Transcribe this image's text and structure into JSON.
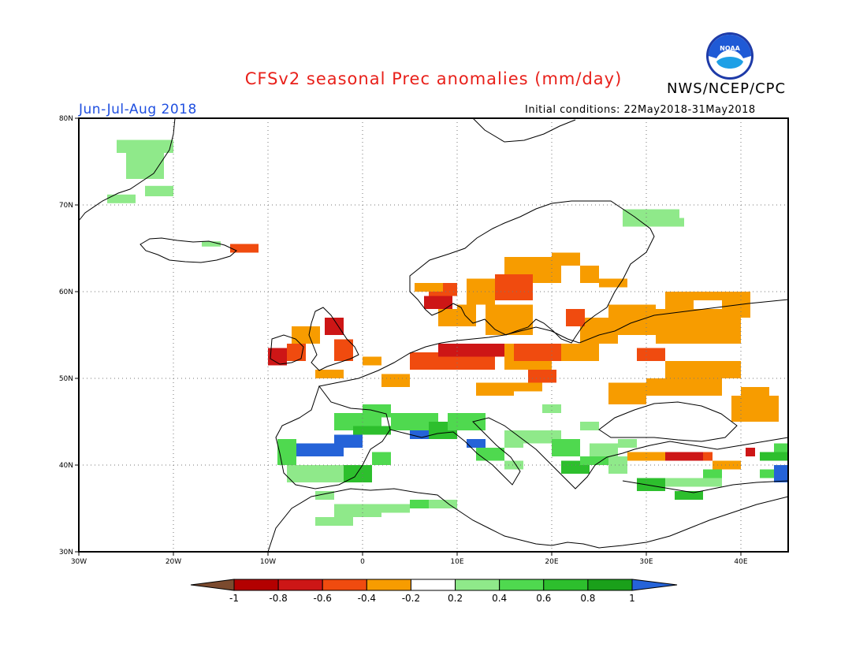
{
  "header": {
    "title": "CFSv2 seasonal Prec anomalies (mm/day)",
    "agency": "NWS/NCEP/CPC",
    "season": "Jun-Jul-Aug 2018",
    "initial_conditions": "Initial conditions: 22May2018-31May2018",
    "logo_text": "NOAA"
  },
  "map": {
    "lon_range": [
      -30,
      45
    ],
    "lat_range": [
      30,
      80
    ],
    "lon_ticks": [
      {
        "value": -30,
        "label": "30W"
      },
      {
        "value": -20,
        "label": "20W"
      },
      {
        "value": -10,
        "label": "10W"
      },
      {
        "value": 0,
        "label": "0"
      },
      {
        "value": 10,
        "label": "10E"
      },
      {
        "value": 20,
        "label": "20E"
      },
      {
        "value": 30,
        "label": "30E"
      },
      {
        "value": 40,
        "label": "40E"
      }
    ],
    "lat_ticks": [
      {
        "value": 30,
        "label": "30N"
      },
      {
        "value": 40,
        "label": "40N"
      },
      {
        "value": 50,
        "label": "50N"
      },
      {
        "value": 60,
        "label": "60N"
      },
      {
        "value": 70,
        "label": "70N"
      },
      {
        "value": 80,
        "label": "80N"
      }
    ],
    "anomaly_cells": [
      {
        "lon": -26,
        "lat": 76,
        "w": 6,
        "h": 1.5,
        "level": 0.3
      },
      {
        "lon": -25,
        "lat": 73,
        "w": 4,
        "h": 3,
        "level": 0.3
      },
      {
        "lon": -27,
        "lat": 70.2,
        "w": 3,
        "h": 1,
        "level": 0.3
      },
      {
        "lon": -23,
        "lat": 71,
        "w": 3,
        "h": 1.2,
        "level": 0.3
      },
      {
        "lon": -14,
        "lat": 64.5,
        "w": 3,
        "h": 1,
        "level": -0.5
      },
      {
        "lon": -17,
        "lat": 65.2,
        "w": 2,
        "h": 0.6,
        "level": 0.3
      },
      {
        "lon": -10,
        "lat": 51.5,
        "w": 2,
        "h": 2,
        "level": -0.7
      },
      {
        "lon": -8,
        "lat": 52,
        "w": 2,
        "h": 2,
        "level": -0.5
      },
      {
        "lon": -7.5,
        "lat": 54,
        "w": 3,
        "h": 2,
        "level": -0.3
      },
      {
        "lon": -4,
        "lat": 55,
        "w": 2,
        "h": 2,
        "level": -0.7
      },
      {
        "lon": -3,
        "lat": 52,
        "w": 2,
        "h": 2.5,
        "level": -0.5
      },
      {
        "lon": -5,
        "lat": 50,
        "w": 3,
        "h": 1,
        "level": -0.3
      },
      {
        "lon": 0,
        "lat": 51.5,
        "w": 2,
        "h": 1,
        "level": -0.3
      },
      {
        "lon": 2,
        "lat": 49,
        "w": 3,
        "h": 1.5,
        "level": -0.3
      },
      {
        "lon": 5,
        "lat": 51,
        "w": 4,
        "h": 2,
        "level": -0.5
      },
      {
        "lon": 9,
        "lat": 51,
        "w": 5,
        "h": 2,
        "level": -0.5
      },
      {
        "lon": 8,
        "lat": 52.5,
        "w": 7,
        "h": 1.5,
        "level": -0.7
      },
      {
        "lon": 15,
        "lat": 51,
        "w": 5,
        "h": 3,
        "level": -0.3
      },
      {
        "lon": 16,
        "lat": 52,
        "w": 5,
        "h": 2,
        "level": -0.5
      },
      {
        "lon": 17.5,
        "lat": 49.5,
        "w": 3,
        "h": 1.5,
        "level": -0.5
      },
      {
        "lon": 21,
        "lat": 52,
        "w": 4,
        "h": 2,
        "level": -0.3
      },
      {
        "lon": 23,
        "lat": 54,
        "w": 4,
        "h": 3,
        "level": -0.3
      },
      {
        "lon": 21.5,
        "lat": 56,
        "w": 2,
        "h": 2,
        "level": -0.5
      },
      {
        "lon": 8,
        "lat": 56,
        "w": 4,
        "h": 2,
        "level": -0.3
      },
      {
        "lon": 6.5,
        "lat": 58,
        "w": 3,
        "h": 1.5,
        "level": -0.7
      },
      {
        "lon": 7,
        "lat": 59.5,
        "w": 3,
        "h": 1.5,
        "level": -0.5
      },
      {
        "lon": 5.5,
        "lat": 60,
        "w": 3,
        "h": 1,
        "level": -0.3
      },
      {
        "lon": 10,
        "lat": 56,
        "w": 2,
        "h": 2.5,
        "level": -0.3
      },
      {
        "lon": 11,
        "lat": 58.5,
        "w": 3,
        "h": 3,
        "level": -0.3
      },
      {
        "lon": 13,
        "lat": 55,
        "w": 5,
        "h": 3.5,
        "level": -0.3
      },
      {
        "lon": 14,
        "lat": 59,
        "w": 4,
        "h": 3,
        "level": -0.5
      },
      {
        "lon": 15,
        "lat": 62,
        "w": 4,
        "h": 2,
        "level": -0.3
      },
      {
        "lon": 18,
        "lat": 61,
        "w": 3,
        "h": 3,
        "level": -0.3
      },
      {
        "lon": 20,
        "lat": 63,
        "w": 3,
        "h": 1.5,
        "level": -0.3
      },
      {
        "lon": 23,
        "lat": 61,
        "w": 2,
        "h": 2,
        "level": -0.3
      },
      {
        "lon": 25,
        "lat": 60.5,
        "w": 3,
        "h": 1,
        "level": -0.3
      },
      {
        "lon": 26,
        "lat": 55,
        "w": 5,
        "h": 3.5,
        "level": -0.3
      },
      {
        "lon": 31,
        "lat": 54,
        "w": 9,
        "h": 4,
        "level": -0.3
      },
      {
        "lon": 32,
        "lat": 50,
        "w": 8,
        "h": 2,
        "level": -0.3
      },
      {
        "lon": 29,
        "lat": 52,
        "w": 3,
        "h": 1.5,
        "level": -0.5
      },
      {
        "lon": 32,
        "lat": 57,
        "w": 9,
        "h": 3,
        "level": -0.3
      },
      {
        "lon": 35,
        "lat": 58,
        "w": 3,
        "h": 1,
        "level": 0
      },
      {
        "lon": 26,
        "lat": 47,
        "w": 4,
        "h": 2.5,
        "level": -0.3
      },
      {
        "lon": 30,
        "lat": 48,
        "w": 8,
        "h": 2,
        "level": -0.3
      },
      {
        "lon": 39,
        "lat": 45,
        "w": 5,
        "h": 3,
        "level": -0.3
      },
      {
        "lon": 40,
        "lat": 47.5,
        "w": 3,
        "h": 1.5,
        "level": -0.3
      },
      {
        "lon": 16,
        "lat": 48.5,
        "w": 3,
        "h": 1,
        "level": -0.3
      },
      {
        "lon": 12,
        "lat": 48,
        "w": 4,
        "h": 1.5,
        "level": -0.3
      },
      {
        "lon": 28,
        "lat": 40.5,
        "w": 4,
        "h": 1,
        "level": -0.3
      },
      {
        "lon": 32,
        "lat": 40.5,
        "w": 4,
        "h": 1,
        "level": -0.7
      },
      {
        "lon": 36,
        "lat": 40.5,
        "w": 1,
        "h": 1,
        "level": -0.5
      },
      {
        "lon": 37,
        "lat": 39.5,
        "w": 3,
        "h": 1,
        "level": -0.3
      },
      {
        "lon": 26,
        "lat": 63,
        "w": 3,
        "h": 1,
        "level": 0
      },
      {
        "lon": 27.5,
        "lat": 67.5,
        "w": 6,
        "h": 2,
        "level": 0.3
      },
      {
        "lon": 31,
        "lat": 67.5,
        "w": 3,
        "h": 1,
        "level": 0.3
      },
      {
        "lon": -3,
        "lat": 44,
        "w": 5,
        "h": 2,
        "level": 0.5
      },
      {
        "lon": 0,
        "lat": 45.5,
        "w": 3,
        "h": 1.5,
        "level": 0.5
      },
      {
        "lon": -1,
        "lat": 43.5,
        "w": 4,
        "h": 1,
        "level": 0.7
      },
      {
        "lon": 3,
        "lat": 44,
        "w": 5,
        "h": 2,
        "level": 0.5
      },
      {
        "lon": 5,
        "lat": 43,
        "w": 2,
        "h": 1,
        "level": 1.1
      },
      {
        "lon": 7,
        "lat": 43,
        "w": 3,
        "h": 2,
        "level": 0.7
      },
      {
        "lon": 9,
        "lat": 44,
        "w": 4,
        "h": 2,
        "level": 0.5
      },
      {
        "lon": 11,
        "lat": 42,
        "w": 2,
        "h": 1,
        "level": 1.1
      },
      {
        "lon": 12,
        "lat": 40.5,
        "w": 3,
        "h": 1.5,
        "level": 0.5
      },
      {
        "lon": 15,
        "lat": 39.5,
        "w": 2,
        "h": 1,
        "level": 0.3
      },
      {
        "lon": 15,
        "lat": 42,
        "w": 2,
        "h": 2,
        "level": 0.3
      },
      {
        "lon": 17,
        "lat": 42.5,
        "w": 4,
        "h": 1.5,
        "level": 0.3
      },
      {
        "lon": 20,
        "lat": 41,
        "w": 3,
        "h": 2,
        "level": 0.5
      },
      {
        "lon": 21,
        "lat": 39,
        "w": 3,
        "h": 1.5,
        "level": 0.7
      },
      {
        "lon": 23,
        "lat": 40,
        "w": 3,
        "h": 1,
        "level": 0.5
      },
      {
        "lon": 24,
        "lat": 41,
        "w": 3,
        "h": 1.5,
        "level": 0.3
      },
      {
        "lon": 26,
        "lat": 39,
        "w": 2,
        "h": 2,
        "level": 0.3
      },
      {
        "lon": 27,
        "lat": 42,
        "w": 2,
        "h": 1,
        "level": 0.3
      },
      {
        "lon": 23,
        "lat": 44,
        "w": 2,
        "h": 1,
        "level": 0.3
      },
      {
        "lon": 19,
        "lat": 46,
        "w": 2,
        "h": 1,
        "level": 0.3
      },
      {
        "lon": -9,
        "lat": 40,
        "w": 2,
        "h": 3,
        "level": 0.5
      },
      {
        "lon": -8,
        "lat": 38,
        "w": 2,
        "h": 2,
        "level": 0.3
      },
      {
        "lon": -7,
        "lat": 41,
        "w": 5,
        "h": 1.5,
        "level": 1.1
      },
      {
        "lon": -3,
        "lat": 42,
        "w": 3,
        "h": 1.5,
        "level": 1.1
      },
      {
        "lon": -6,
        "lat": 38,
        "w": 4,
        "h": 2,
        "level": 0.3
      },
      {
        "lon": -2,
        "lat": 38,
        "w": 3,
        "h": 2,
        "level": 0.7
      },
      {
        "lon": 1,
        "lat": 40,
        "w": 2,
        "h": 1.5,
        "level": 0.5
      },
      {
        "lon": -5,
        "lat": 36,
        "w": 2,
        "h": 1,
        "level": 0.3
      },
      {
        "lon": -3,
        "lat": 34,
        "w": 5,
        "h": 1.5,
        "level": 0.3
      },
      {
        "lon": 2,
        "lat": 34.5,
        "w": 3,
        "h": 1,
        "level": 0.3
      },
      {
        "lon": 5,
        "lat": 35,
        "w": 2,
        "h": 1,
        "level": 0.5
      },
      {
        "lon": 7,
        "lat": 35,
        "w": 3,
        "h": 1,
        "level": 0.3
      },
      {
        "lon": -5,
        "lat": 33,
        "w": 4,
        "h": 1,
        "level": 0.3
      },
      {
        "lon": 29,
        "lat": 37,
        "w": 3,
        "h": 1.5,
        "level": 0.7
      },
      {
        "lon": 32,
        "lat": 37.5,
        "w": 4,
        "h": 1,
        "level": 0.3
      },
      {
        "lon": 33,
        "lat": 36,
        "w": 3,
        "h": 1,
        "level": 0.7
      },
      {
        "lon": 35,
        "lat": 37.5,
        "w": 3,
        "h": 1,
        "level": 0.3
      },
      {
        "lon": 36,
        "lat": 38.5,
        "w": 2,
        "h": 1,
        "level": 0.5
      },
      {
        "lon": 42,
        "lat": 38.5,
        "w": 2,
        "h": 1,
        "level": 0.5
      },
      {
        "lon": 43.5,
        "lat": 38,
        "w": 1.5,
        "h": 2,
        "level": 1.1
      },
      {
        "lon": 42,
        "lat": 40.5,
        "w": 3,
        "h": 1,
        "level": 0.7
      },
      {
        "lon": 40.5,
        "lat": 41,
        "w": 1,
        "h": 1,
        "level": -0.7
      },
      {
        "lon": 43.5,
        "lat": 41.5,
        "w": 1.5,
        "h": 1,
        "level": 0.5
      }
    ]
  },
  "colorbar": {
    "labels": [
      "-1",
      "-0.8",
      "-0.6",
      "-0.4",
      "-0.2",
      "0.2",
      "0.4",
      "0.6",
      "0.8",
      "1"
    ],
    "colors": [
      "#7b4a2e",
      "#b30000",
      "#cd1616",
      "#f04b0f",
      "#f79c00",
      "#ffffff",
      "#8fe98a",
      "#4fd94f",
      "#2dbf2d",
      "#1aa01a",
      "#2563d8"
    ]
  }
}
